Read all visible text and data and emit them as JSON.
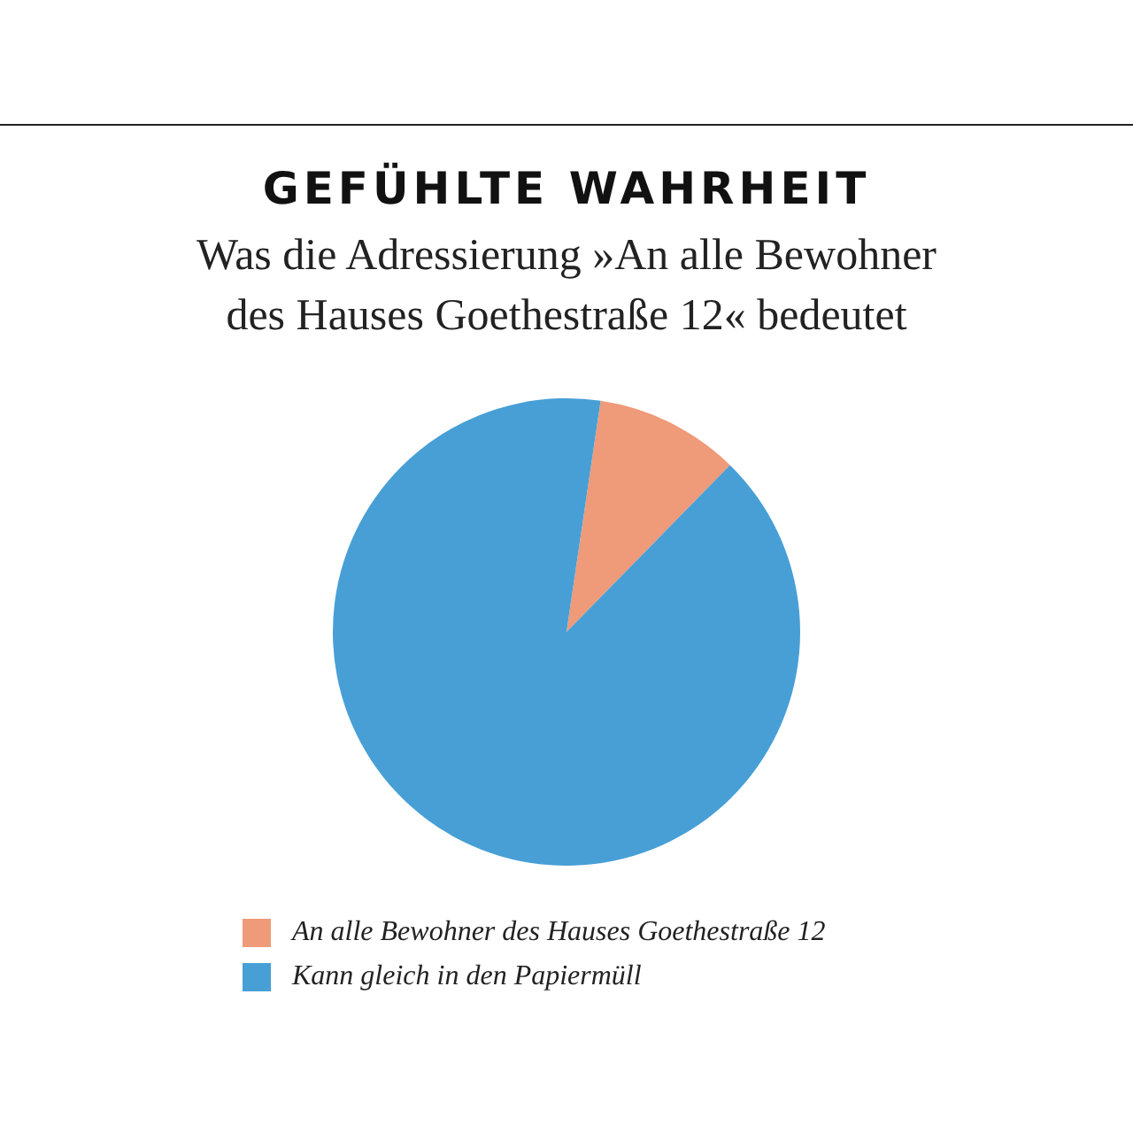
{
  "chart_data": {
    "type": "pie",
    "title": "GEFÜHLTE WAHRHEIT",
    "subtitle": "Was die Adressierung »An alle Bewohner des Hauses Goethestraße 12« bedeutet",
    "categories": [
      "An alle Bewohner des Hauses Goethestraße 12",
      "Kann gleich in den Papiermüll"
    ],
    "values": [
      10,
      90
    ],
    "colors": [
      "#ef9a78",
      "#479fd6"
    ],
    "legend": "bottom"
  }
}
